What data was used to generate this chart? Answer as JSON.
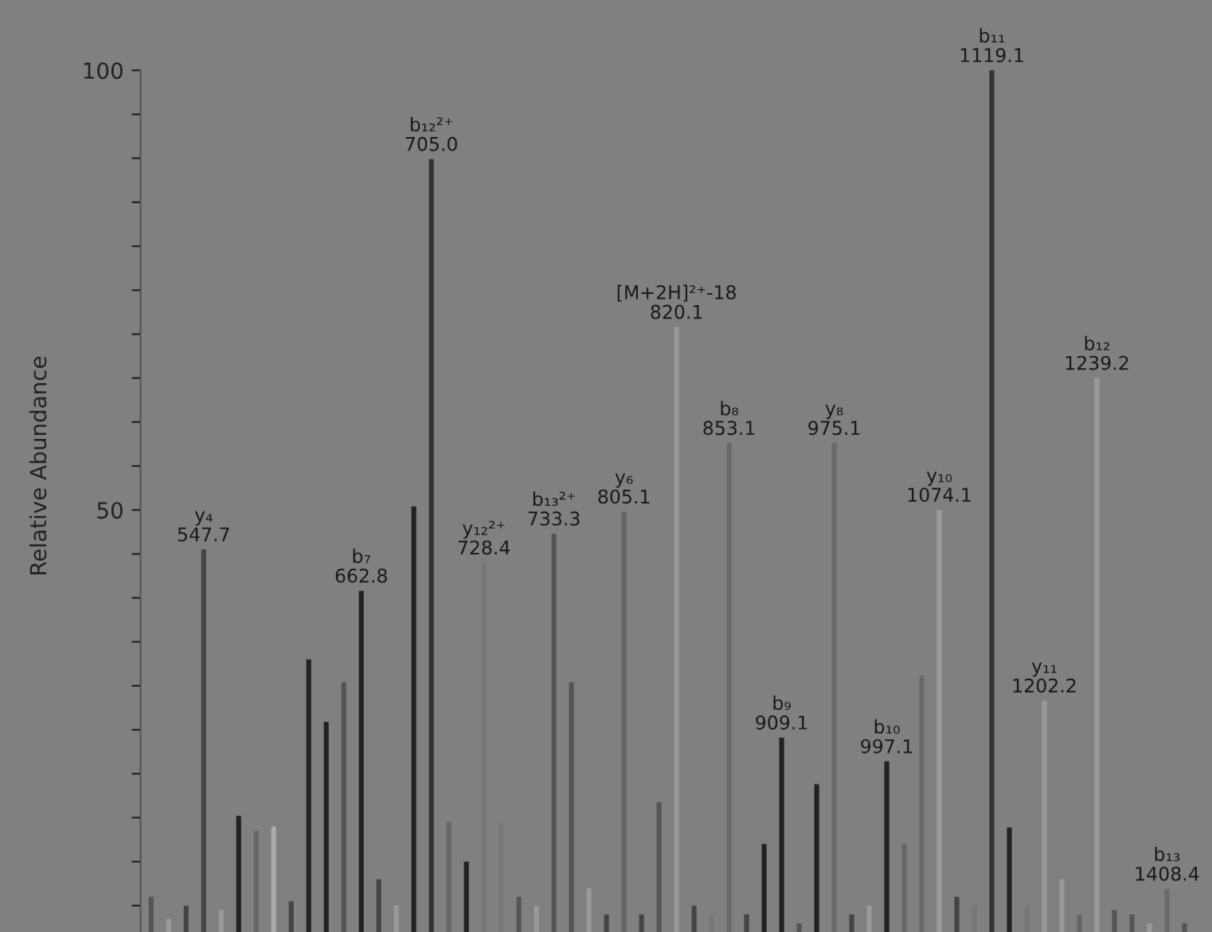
{
  "chart_data": {
    "type": "bar",
    "ylabel": "Relative Abundance",
    "categories": [
      null,
      null,
      null,
      null,
      null,
      null,
      null,
      null,
      null,
      null,
      null,
      null,
      null,
      null,
      null,
      null,
      null,
      null,
      null,
      null,
      null,
      null,
      null,
      null,
      null,
      null,
      null,
      null,
      null,
      null,
      null,
      null,
      null,
      null,
      null,
      null,
      null,
      null,
      null,
      null,
      null,
      null,
      null,
      null,
      null,
      null,
      null,
      null,
      null,
      null,
      null,
      null,
      null,
      null,
      null,
      null,
      null,
      null,
      null,
      null
    ],
    "values": [
      6.0,
      3.5,
      5.0,
      45.5,
      4.5,
      15.2,
      13.5,
      14.0,
      5.5,
      33.0,
      25.9,
      30.4,
      40.8,
      8.0,
      5.0,
      50.4,
      89.9,
      14.5,
      10.0,
      44.0,
      14.5,
      6.0,
      5.0,
      47.3,
      30.4,
      7.0,
      4.0,
      49.8,
      4.0,
      16.8,
      70.8,
      5.0,
      4.0,
      57.6,
      4.0,
      12.0,
      24.1,
      3.0,
      18.8,
      57.6,
      4.0,
      5.0,
      21.4,
      12.0,
      31.2,
      50.0,
      6.0,
      5.0,
      100,
      13.9,
      5.0,
      28.3,
      8.0,
      4.0,
      65.0,
      4.5,
      4.0,
      3.0,
      6.9,
      3.0
    ],
    "colors": [
      "#555555",
      "#999999",
      "#444444",
      "#444444",
      "#999999",
      "#222222",
      "#666666",
      "#aaaaaa",
      "#444444",
      "#222222",
      "#222222",
      "#555555",
      "#222222",
      "#444444",
      "#999999",
      "#222222",
      "#333333",
      "#666666",
      "#222222",
      "#777777",
      "#777777",
      "#555555",
      "#999999",
      "#555555",
      "#555555",
      "#999999",
      "#444444",
      "#666666",
      "#444444",
      "#555555",
      "#9a9a9a",
      "#444444",
      "#777777",
      "#6a6a6a",
      "#444444",
      "#222222",
      "#222222",
      "#555555",
      "#222222",
      "#6a6a6a",
      "#444444",
      "#999999",
      "#222222",
      "#666666",
      "#6a6a6a",
      "#9a9a9a",
      "#444444",
      "#777777",
      "#333333",
      "#222222",
      "#777777",
      "#9a9a9a",
      "#999999",
      "#666666",
      "#9a9a9a",
      "#555555",
      "#555555",
      "#999999",
      "#6a6a6a",
      "#555555"
    ],
    "annotations": [
      {
        "text": "y₄\n547.7",
        "y": 45.5
      },
      {
        "text": "b₇\n662.8",
        "y": 40.8
      },
      {
        "text": "b₁₂²⁺\n705.0",
        "y": 89.9
      },
      {
        "text": "y₁₂²⁺\n728.4",
        "y": 44.0
      },
      {
        "text": "b₁₃²⁺\n733.3",
        "y": 47.3
      },
      {
        "text": "y₆\n805.1",
        "y": 49.8
      },
      {
        "text": "[M+2H]²⁺-18\n820.1",
        "y": 70.8
      },
      {
        "text": "b₈\n853.1",
        "y": 57.6
      },
      {
        "text": "b₉\n909.1",
        "y": 24.1
      },
      {
        "text": "y₈\n975.1",
        "y": 57.6
      },
      {
        "text": "b₁₀\n997.1",
        "y": 21.4
      },
      {
        "text": "y₁₀\n1074.1",
        "y": 50.0
      },
      {
        "text": "b₁₁\n1119.1",
        "y": 100
      },
      {
        "text": "y₁₁\n1202.2",
        "y": 28.3
      },
      {
        "text": "b₁₂\n1239.2",
        "y": 65.0
      },
      {
        "text": "b₁₃\n1408.4",
        "y": 6.9
      }
    ],
    "ylim": [
      2,
      108
    ],
    "yticks": [
      {
        "value": 5,
        "label": null
      },
      {
        "value": 10,
        "label": null
      },
      {
        "value": 15,
        "label": null
      },
      {
        "value": 20,
        "label": null
      },
      {
        "value": 25,
        "label": null
      },
      {
        "value": 30,
        "label": null
      },
      {
        "value": 35,
        "label": null
      },
      {
        "value": 40,
        "label": null
      },
      {
        "value": 45,
        "label": null
      },
      50,
      {
        "value": 55,
        "label": null
      },
      {
        "value": 60,
        "label": null
      },
      {
        "value": 65,
        "label": null
      },
      {
        "value": 70,
        "label": null
      },
      {
        "value": 75,
        "label": null
      },
      {
        "value": 80,
        "label": null
      },
      {
        "value": 85,
        "label": null
      },
      {
        "value": 90,
        "label": null
      },
      {
        "value": 95,
        "label": null
      },
      100
    ],
    "tick_labels": "y"
  }
}
